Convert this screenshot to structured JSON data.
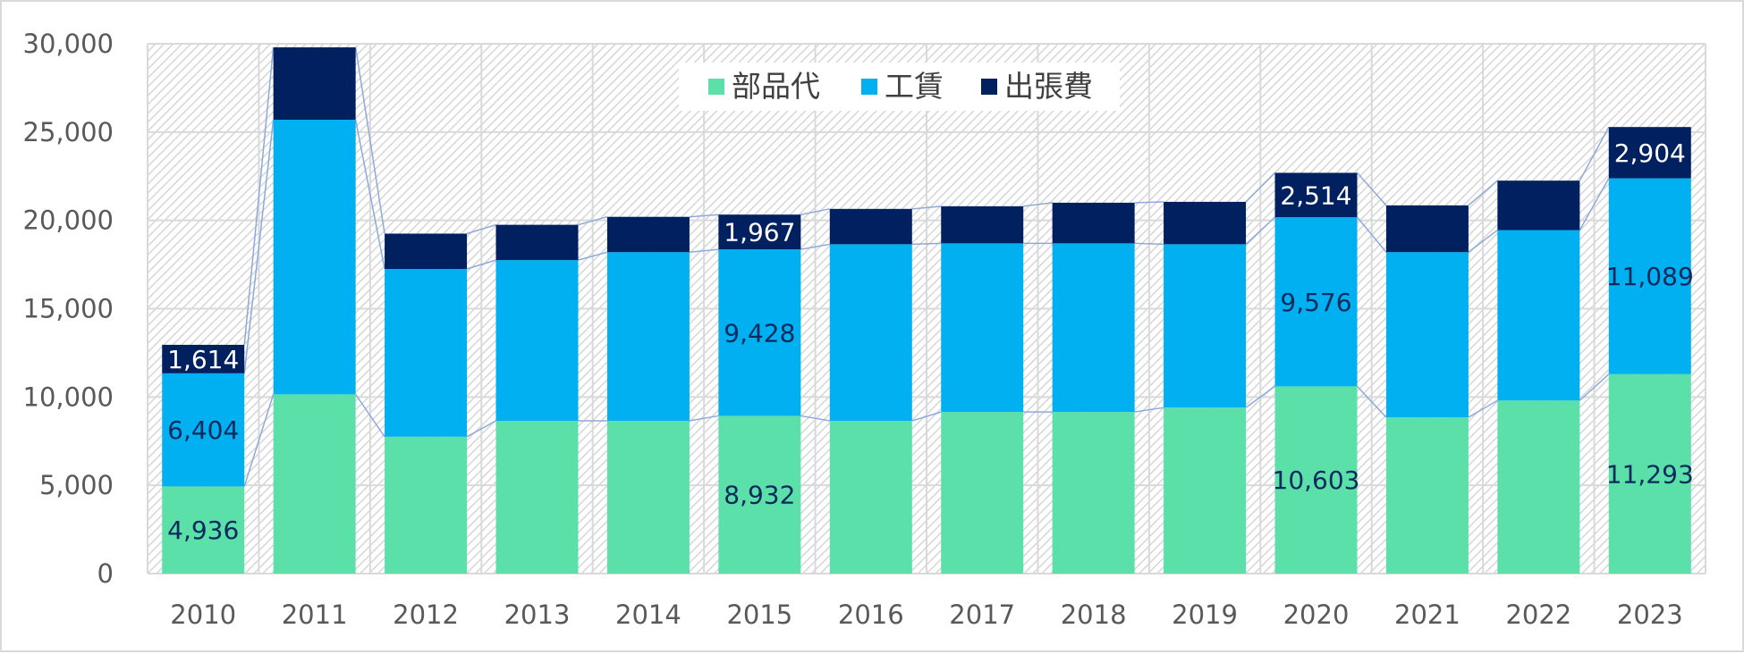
{
  "chart_data": {
    "type": "bar",
    "stacked": true,
    "categories": [
      "2010",
      "2011",
      "2012",
      "2013",
      "2014",
      "2015",
      "2016",
      "2017",
      "2018",
      "2019",
      "2020",
      "2021",
      "2022",
      "2023"
    ],
    "series": [
      {
        "name": "部品代",
        "color": "#5ce0aa",
        "values": [
          4936,
          10150,
          7750,
          8650,
          8650,
          8932,
          8650,
          9150,
          9150,
          9400,
          10603,
          8850,
          9800,
          11293
        ]
      },
      {
        "name": "工賃",
        "color": "#00b0f0",
        "values": [
          6404,
          15550,
          9500,
          9100,
          9550,
          9428,
          10000,
          9550,
          9550,
          9250,
          9576,
          9350,
          9650,
          11089
        ]
      },
      {
        "name": "出張費",
        "color": "#002060",
        "values": [
          1614,
          4100,
          2000,
          2000,
          2000,
          1967,
          2000,
          2100,
          2300,
          2400,
          2514,
          2650,
          2800,
          2904
        ]
      }
    ],
    "data_labels": {
      "部品代": {
        "2010": "4,936",
        "2015": "8,932",
        "2020": "10,603",
        "2023": "11,293"
      },
      "工賃": {
        "2010": "6,404",
        "2015": "9,428",
        "2020": "9,576",
        "2023": "11,089"
      },
      "出張費": {
        "2010": "1,614",
        "2015": "1,967",
        "2020": "2,514",
        "2023": "2,904"
      }
    },
    "yticks": [
      "0",
      "5,000",
      "10,000",
      "15,000",
      "20,000",
      "25,000",
      "30,000"
    ],
    "ylim": [
      0,
      30000
    ],
    "legend_position": "top-center",
    "grid": true,
    "series_lines": true,
    "plot_background": "hatched-gray"
  }
}
